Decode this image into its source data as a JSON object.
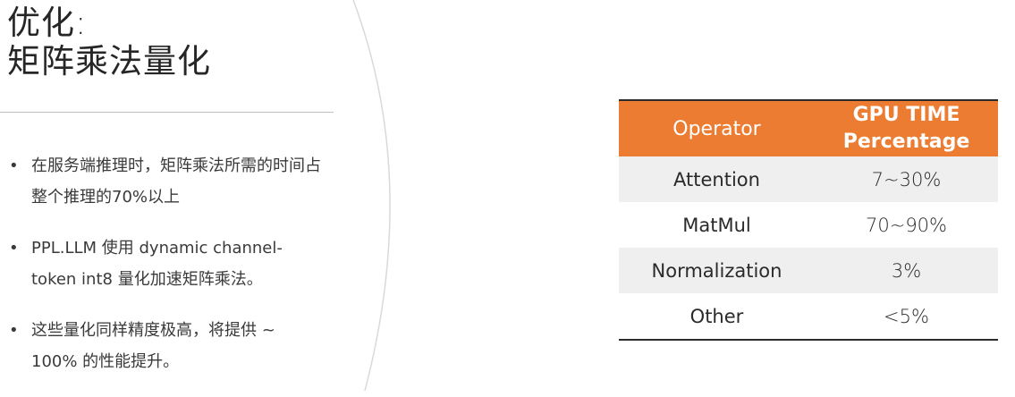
{
  "slide": {
    "title_line1": "优化:",
    "title_line2": "矩阵乘法量化"
  },
  "bullets": [
    {
      "marker": "•",
      "text": "在服务端推理时，矩阵乘法所需的时间占整个推理的70%以上"
    },
    {
      "marker": "•",
      "text": "PPL.LLM 使用 dynamic channel-token int8 量化加速矩阵乘法。"
    },
    {
      "marker": "•",
      "text": "这些量化同样精度极高，将提供 ~ 100% 的性能提升。"
    }
  ],
  "table": {
    "header": {
      "operator": "Operator",
      "gpu_line1": "GPU TIME",
      "gpu_line2": "Percentage"
    },
    "rows": [
      {
        "operator": "Attention",
        "value": "7~30%"
      },
      {
        "operator": "MatMul",
        "value": "70~90%"
      },
      {
        "operator": "Normalization",
        "value": "3%"
      },
      {
        "operator": "Other",
        "value": "<5%"
      }
    ],
    "colors": {
      "header_bg": "#ec7c31",
      "shaded_row_bg": "#efefef"
    }
  }
}
